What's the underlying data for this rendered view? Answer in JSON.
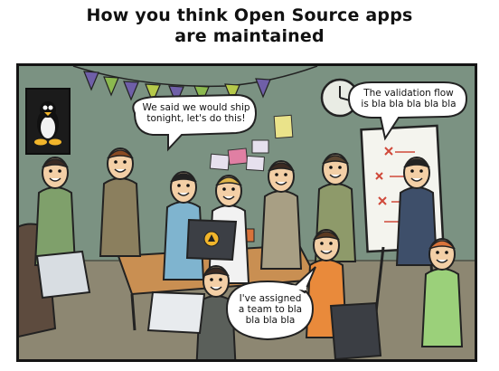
{
  "title": {
    "line1": "How you think Open Source apps",
    "line2": "are maintained"
  },
  "bubbles": [
    {
      "id": "ship",
      "lines": [
        "We said we would ship",
        "tonight, let's do this!"
      ]
    },
    {
      "id": "validation",
      "lines": [
        "The validation flow",
        "is bla bla bla bla bla"
      ]
    },
    {
      "id": "team",
      "lines": [
        "I've assigned",
        "a team to bla",
        "bla bla bla"
      ]
    }
  ],
  "icons": {
    "poster": "linux-penguin-poster-icon",
    "laptop_logo": "open-source-logo-icon",
    "clock": "wall-clock-icon"
  },
  "colors": {
    "wall": "#78907f",
    "floor": "#8d8772",
    "ink": "#141414",
    "bunting": [
      "#6f5fa8",
      "#8bb94f",
      "#6f5fa8",
      "#b5c94a",
      "#6f5fa8",
      "#8bb94f",
      "#b5c94a",
      "#6f5fa8"
    ]
  }
}
